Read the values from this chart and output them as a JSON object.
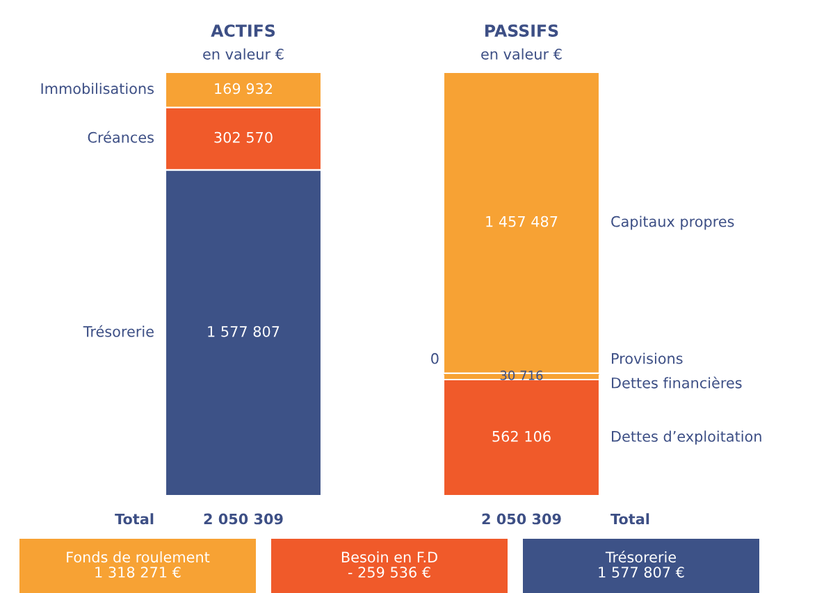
{
  "chart_data": {
    "type": "bar",
    "stacked": true,
    "subtitle": "en valeur €",
    "categories": [
      "ACTIFS",
      "PASSIFS"
    ],
    "series": [
      {
        "name": "Trésorerie",
        "color": "#3d5287",
        "values": [
          1577807,
          null
        ]
      },
      {
        "name": "Créances",
        "color": "#f05a2a",
        "values": [
          302570,
          null
        ]
      },
      {
        "name": "Immobilisations",
        "color": "#f7a234",
        "values": [
          169932,
          null
        ]
      },
      {
        "name": "Dettes d’exploitation",
        "color": "#f05a2a",
        "values": [
          null,
          562106
        ]
      },
      {
        "name": "Dettes financières",
        "color": "#f7a234",
        "values": [
          null,
          30716
        ]
      },
      {
        "name": "Provisions",
        "color": "#f7a234",
        "values": [
          null,
          0
        ]
      },
      {
        "name": "Capitaux propres",
        "color": "#f7a234",
        "values": [
          null,
          1457487
        ]
      }
    ],
    "data_labels": true,
    "value_labels": [
      [
        "1 577 807",
        null
      ],
      [
        "302 570",
        null
      ],
      [
        "169 932",
        null
      ],
      [
        null,
        "562 106"
      ],
      [
        null,
        "30 716"
      ],
      [
        null,
        "0"
      ],
      [
        null,
        "1 457 487"
      ]
    ],
    "totals": [
      "2 050 309",
      "2 050 309"
    ],
    "annotations": [
      "Total",
      "Total",
      "Fonds de roulement\n1 318 271 €",
      "Besoin en F.D\n- 259 536 €",
      "Trésorerie\n1 577 807 €"
    ],
    "legend": false
  }
}
